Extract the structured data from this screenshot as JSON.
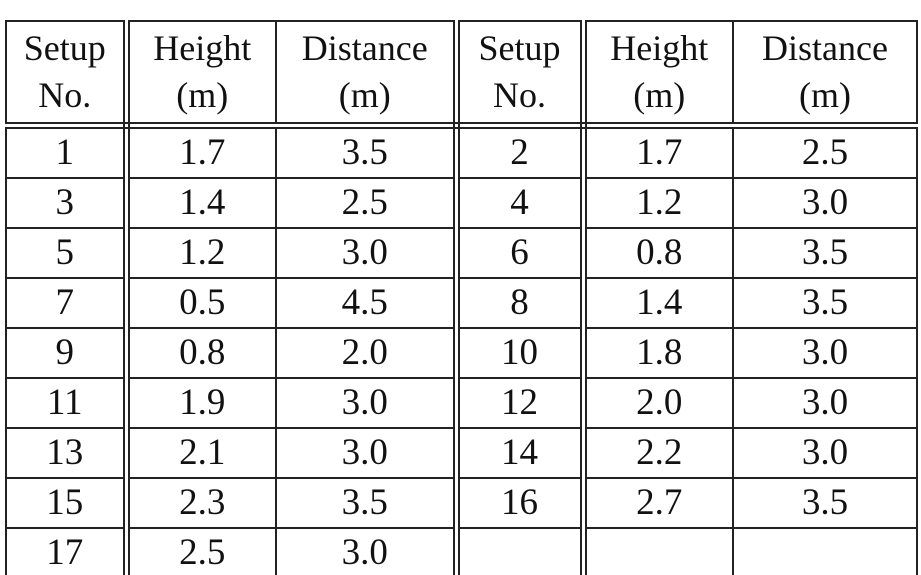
{
  "table": {
    "headers": [
      {
        "line1": "Setup",
        "line2": "No."
      },
      {
        "line1": "Height",
        "line2": "(m)"
      },
      {
        "line1": "Distance",
        "line2": "(m)"
      },
      {
        "line1": "Setup",
        "line2": "No."
      },
      {
        "line1": "Height",
        "line2": "(m)"
      },
      {
        "line1": "Distance",
        "line2": "(m)"
      }
    ],
    "rows": [
      [
        "1",
        "1.7",
        "3.5",
        "2",
        "1.7",
        "2.5"
      ],
      [
        "3",
        "1.4",
        "2.5",
        "4",
        "1.2",
        "3.0"
      ],
      [
        "5",
        "1.2",
        "3.0",
        "6",
        "0.8",
        "3.5"
      ],
      [
        "7",
        "0.5",
        "4.5",
        "8",
        "1.4",
        "3.5"
      ],
      [
        "9",
        "0.8",
        "2.0",
        "10",
        "1.8",
        "3.0"
      ],
      [
        "11",
        "1.9",
        "3.0",
        "12",
        "2.0",
        "3.0"
      ],
      [
        "13",
        "2.1",
        "3.0",
        "14",
        "2.2",
        "3.0"
      ],
      [
        "15",
        "2.3",
        "3.5",
        "16",
        "2.7",
        "3.5"
      ],
      [
        "17",
        "2.5",
        "3.0",
        "",
        "",
        ""
      ]
    ]
  }
}
